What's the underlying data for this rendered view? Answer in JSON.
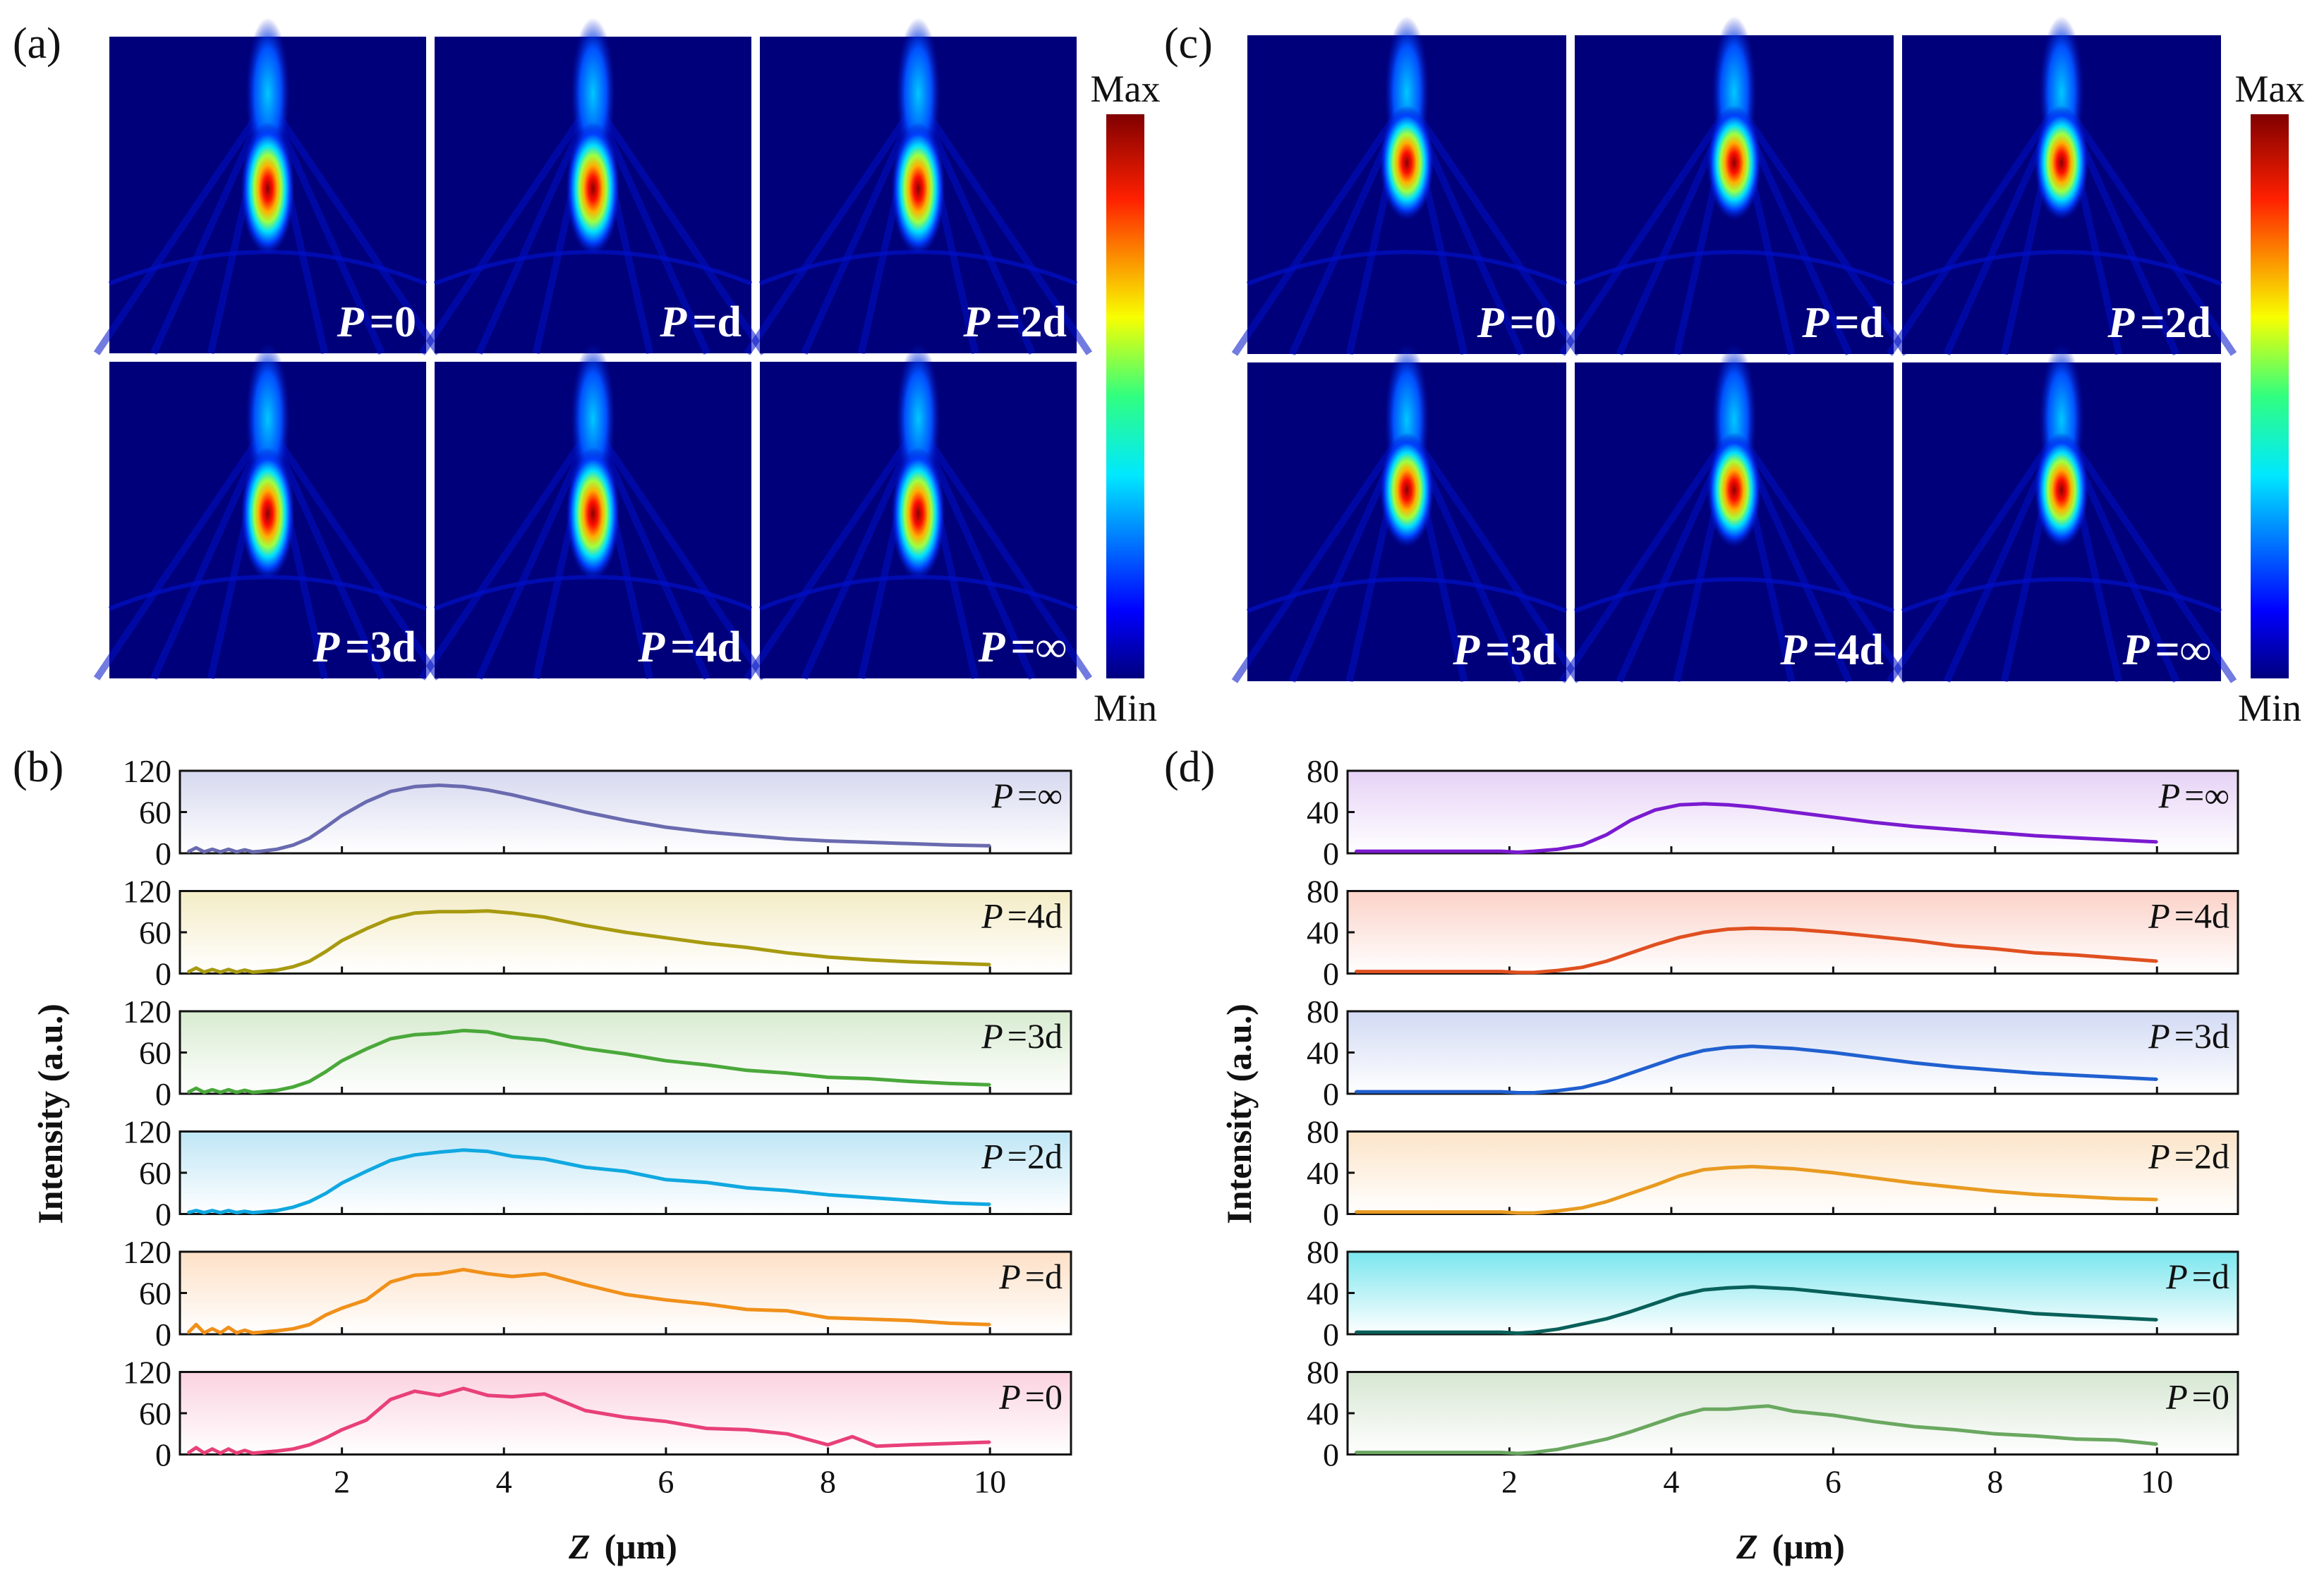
{
  "colors": {
    "bg": "#ffffff",
    "map_dark": "#00007a",
    "map_mid": "#0010c8",
    "map_cyan": "#00e8ff",
    "map_yellow": "#fff000",
    "map_red": "#e00000",
    "map_max": "#7a0000"
  },
  "colorbar": {
    "max_label": "Max",
    "min_label": "Min"
  },
  "panel_labels": {
    "a": "(a)",
    "b": "(b)",
    "c": "(c)",
    "d": "(d)"
  },
  "heatmaps": {
    "a": [
      {
        "p": "P",
        "val": "=0",
        "hotspot": "focus"
      },
      {
        "p": "P",
        "val": "=d",
        "hotspot": "focus"
      },
      {
        "p": "P",
        "val": "=2d",
        "hotspot": "focus"
      },
      {
        "p": "P",
        "val": "=3d",
        "hotspot": "focus"
      },
      {
        "p": "P",
        "val": "=4d",
        "hotspot": "focus"
      },
      {
        "p": "P",
        "val": "=∞",
        "hotspot": "focus"
      }
    ],
    "c": [
      {
        "p": "P",
        "val": "=0",
        "hotspot": "focus"
      },
      {
        "p": "P",
        "val": "=d",
        "hotspot": "focus"
      },
      {
        "p": "P",
        "val": "=2d",
        "hotspot": "focus"
      },
      {
        "p": "P",
        "val": "=3d",
        "hotspot": "focus"
      },
      {
        "p": "P",
        "val": "=4d",
        "hotspot": "focus"
      },
      {
        "p": "P",
        "val": "=∞",
        "hotspot": "focus"
      }
    ]
  },
  "chart_data": [
    {
      "type": "line",
      "panel": "(b)",
      "xlabel_var": "Z",
      "xlabel_unit": "(μm)",
      "ylabel": "Intensity (a.u.)",
      "xlim": [
        0,
        11
      ],
      "ylim": [
        0,
        120
      ],
      "xticks": [
        2,
        4,
        6,
        8,
        10
      ],
      "yticks": [
        0,
        60,
        120
      ],
      "series": [
        {
          "name": "P=∞",
          "label_p": "P",
          "label_val": "=∞",
          "color": "#6a6ab0",
          "bg": "#d6d8ef",
          "x": [
            0.1,
            0.2,
            0.3,
            0.4,
            0.5,
            0.6,
            0.7,
            0.8,
            0.9,
            1.0,
            1.2,
            1.4,
            1.6,
            1.8,
            2.0,
            2.3,
            2.6,
            2.9,
            3.2,
            3.5,
            3.8,
            4.1,
            4.5,
            5.0,
            5.5,
            6.0,
            6.5,
            7.0,
            7.5,
            8.0,
            8.5,
            9.0,
            9.5,
            10.0
          ],
          "y": [
            2,
            8,
            2,
            6,
            2,
            6,
            2,
            5,
            2,
            3,
            6,
            12,
            22,
            38,
            55,
            75,
            90,
            97,
            99,
            97,
            92,
            85,
            74,
            60,
            48,
            38,
            31,
            26,
            21,
            18,
            16,
            14,
            12,
            11
          ]
        },
        {
          "name": "P=4d",
          "label_p": "P",
          "label_val": "=4d",
          "color": "#a89a10",
          "bg": "#f4ecc6",
          "x": [
            0.1,
            0.2,
            0.3,
            0.4,
            0.5,
            0.6,
            0.7,
            0.8,
            0.9,
            1.0,
            1.2,
            1.4,
            1.6,
            1.8,
            2.0,
            2.3,
            2.6,
            2.9,
            3.2,
            3.5,
            3.8,
            4.1,
            4.5,
            5.0,
            5.5,
            6.0,
            6.5,
            7.0,
            7.5,
            8.0,
            8.5,
            9.0,
            9.5,
            10.0
          ],
          "y": [
            2,
            8,
            2,
            6,
            2,
            6,
            2,
            5,
            2,
            3,
            5,
            10,
            18,
            32,
            48,
            65,
            80,
            88,
            90,
            90,
            91,
            88,
            82,
            70,
            60,
            52,
            44,
            38,
            30,
            24,
            20,
            17,
            15,
            13
          ]
        },
        {
          "name": "P=3d",
          "label_p": "P",
          "label_val": "=3d",
          "color": "#4aa83a",
          "bg": "#d8ebd0",
          "x": [
            0.1,
            0.2,
            0.3,
            0.4,
            0.5,
            0.6,
            0.7,
            0.8,
            0.9,
            1.0,
            1.2,
            1.4,
            1.6,
            1.8,
            2.0,
            2.3,
            2.6,
            2.9,
            3.2,
            3.5,
            3.8,
            4.1,
            4.5,
            5.0,
            5.5,
            6.0,
            6.5,
            7.0,
            7.5,
            8.0,
            8.5,
            9.0,
            9.5,
            10.0
          ],
          "y": [
            2,
            8,
            2,
            6,
            2,
            6,
            2,
            5,
            2,
            3,
            5,
            10,
            18,
            32,
            48,
            65,
            80,
            86,
            88,
            92,
            90,
            82,
            78,
            66,
            58,
            48,
            42,
            34,
            30,
            24,
            22,
            18,
            15,
            13
          ]
        },
        {
          "name": "P=2d",
          "label_p": "P",
          "label_val": "=2d",
          "color": "#10a8e0",
          "bg": "#bfe6f6",
          "x": [
            0.1,
            0.2,
            0.3,
            0.4,
            0.5,
            0.6,
            0.7,
            0.8,
            0.9,
            1.0,
            1.2,
            1.4,
            1.6,
            1.8,
            2.0,
            2.3,
            2.6,
            2.9,
            3.2,
            3.5,
            3.8,
            4.1,
            4.5,
            5.0,
            5.5,
            6.0,
            6.5,
            7.0,
            7.5,
            8.0,
            8.5,
            9.0,
            9.5,
            10.0
          ],
          "y": [
            2,
            5,
            2,
            5,
            2,
            5,
            2,
            4,
            2,
            3,
            5,
            10,
            18,
            30,
            45,
            62,
            78,
            86,
            90,
            93,
            91,
            84,
            80,
            68,
            62,
            50,
            46,
            38,
            34,
            28,
            24,
            20,
            16,
            14
          ]
        },
        {
          "name": "P=d",
          "label_p": "P",
          "label_val": "=d",
          "color": "#f0901a",
          "bg": "#fde0c6",
          "x": [
            0.1,
            0.2,
            0.3,
            0.4,
            0.5,
            0.6,
            0.7,
            0.8,
            0.9,
            1.0,
            1.2,
            1.4,
            1.6,
            1.8,
            2.0,
            2.3,
            2.6,
            2.9,
            3.2,
            3.5,
            3.8,
            4.1,
            4.5,
            5.0,
            5.5,
            6.0,
            6.5,
            7.0,
            7.5,
            8.0,
            8.5,
            9.0,
            9.5,
            10.0
          ],
          "y": [
            2,
            14,
            2,
            8,
            2,
            10,
            2,
            6,
            2,
            3,
            5,
            8,
            14,
            28,
            38,
            50,
            76,
            86,
            88,
            94,
            88,
            84,
            88,
            72,
            58,
            50,
            44,
            36,
            34,
            24,
            22,
            20,
            16,
            14
          ]
        },
        {
          "name": "P=0",
          "label_p": "P",
          "label_val": "=0",
          "color": "#e8407a",
          "bg": "#fbd2e0",
          "x": [
            0.1,
            0.2,
            0.3,
            0.4,
            0.5,
            0.6,
            0.7,
            0.8,
            0.9,
            1.0,
            1.2,
            1.4,
            1.6,
            1.8,
            2.0,
            2.3,
            2.6,
            2.9,
            3.2,
            3.5,
            3.8,
            4.1,
            4.5,
            5.0,
            5.5,
            6.0,
            6.5,
            7.0,
            7.5,
            8.0,
            8.3,
            8.6,
            9.0,
            9.5,
            10.0
          ],
          "y": [
            2,
            10,
            2,
            8,
            2,
            8,
            2,
            6,
            2,
            3,
            5,
            8,
            14,
            24,
            36,
            50,
            80,
            92,
            86,
            96,
            86,
            84,
            88,
            64,
            54,
            48,
            38,
            36,
            30,
            14,
            26,
            12,
            14,
            16,
            18
          ]
        }
      ]
    },
    {
      "type": "line",
      "panel": "(d)",
      "xlabel_var": "Z",
      "xlabel_unit": "(μm)",
      "ylabel": "Intensity (a.u.)",
      "xlim": [
        0,
        11
      ],
      "ylim": [
        0,
        80
      ],
      "xticks": [
        2,
        4,
        6,
        8,
        10
      ],
      "yticks": [
        0,
        40,
        80
      ],
      "series": [
        {
          "name": "P=∞",
          "label_p": "P",
          "label_val": "=∞",
          "color": "#7a1ad0",
          "bg": "#e6d2f6",
          "x": [
            0.1,
            0.3,
            0.5,
            0.7,
            0.9,
            1.1,
            1.3,
            1.5,
            1.7,
            1.9,
            2.1,
            2.3,
            2.6,
            2.9,
            3.2,
            3.5,
            3.8,
            4.1,
            4.4,
            4.7,
            5.0,
            5.5,
            6.0,
            6.5,
            7.0,
            7.5,
            8.0,
            8.5,
            9.0,
            9.5,
            10.0
          ],
          "y": [
            2,
            2,
            2,
            2,
            2,
            2,
            2,
            2,
            2,
            2,
            1,
            2,
            4,
            8,
            18,
            32,
            42,
            47,
            48,
            47,
            45,
            40,
            35,
            30,
            26,
            23,
            20,
            17,
            15,
            13,
            11
          ]
        },
        {
          "name": "P=4d",
          "label_p": "P",
          "label_val": "=4d",
          "color": "#e05020",
          "bg": "#fbd2c8",
          "x": [
            0.1,
            0.3,
            0.5,
            0.7,
            0.9,
            1.1,
            1.3,
            1.5,
            1.7,
            1.9,
            2.1,
            2.3,
            2.6,
            2.9,
            3.2,
            3.5,
            3.8,
            4.1,
            4.4,
            4.7,
            5.0,
            5.5,
            6.0,
            6.5,
            7.0,
            7.5,
            8.0,
            8.5,
            9.0,
            9.5,
            10.0
          ],
          "y": [
            2,
            2,
            2,
            2,
            2,
            2,
            2,
            2,
            2,
            2,
            1,
            1,
            3,
            6,
            12,
            20,
            28,
            35,
            40,
            43,
            44,
            43,
            40,
            36,
            32,
            27,
            24,
            20,
            18,
            15,
            12
          ]
        },
        {
          "name": "P=3d",
          "label_p": "P",
          "label_val": "=3d",
          "color": "#2060d0",
          "bg": "#d2daf4",
          "x": [
            0.1,
            0.3,
            0.5,
            0.7,
            0.9,
            1.1,
            1.3,
            1.5,
            1.7,
            1.9,
            2.1,
            2.3,
            2.6,
            2.9,
            3.2,
            3.5,
            3.8,
            4.1,
            4.4,
            4.7,
            5.0,
            5.5,
            6.0,
            6.5,
            7.0,
            7.5,
            8.0,
            8.5,
            9.0,
            9.5,
            10.0
          ],
          "y": [
            2,
            2,
            2,
            2,
            2,
            2,
            2,
            2,
            2,
            2,
            1,
            1,
            3,
            6,
            12,
            20,
            28,
            36,
            42,
            45,
            46,
            44,
            40,
            35,
            30,
            26,
            23,
            20,
            18,
            16,
            14
          ]
        },
        {
          "name": "P=2d",
          "label_p": "P",
          "label_val": "=2d",
          "color": "#e89a20",
          "bg": "#fce4c8",
          "x": [
            0.1,
            0.3,
            0.5,
            0.7,
            0.9,
            1.1,
            1.3,
            1.5,
            1.7,
            1.9,
            2.1,
            2.3,
            2.6,
            2.9,
            3.2,
            3.5,
            3.8,
            4.1,
            4.4,
            4.7,
            5.0,
            5.5,
            6.0,
            6.5,
            7.0,
            7.5,
            8.0,
            8.5,
            9.0,
            9.5,
            10.0
          ],
          "y": [
            2,
            2,
            2,
            2,
            2,
            2,
            2,
            2,
            2,
            2,
            1,
            1,
            3,
            6,
            12,
            20,
            28,
            37,
            43,
            45,
            46,
            44,
            40,
            35,
            30,
            26,
            22,
            19,
            17,
            15,
            14
          ]
        },
        {
          "name": "P=d",
          "label_p": "P",
          "label_val": "=d",
          "color": "#08605a",
          "bg": "#7ae6ee",
          "x": [
            0.1,
            0.3,
            0.5,
            0.7,
            0.9,
            1.1,
            1.3,
            1.5,
            1.7,
            1.9,
            2.1,
            2.3,
            2.6,
            2.9,
            3.2,
            3.5,
            3.8,
            4.1,
            4.4,
            4.7,
            5.0,
            5.5,
            6.0,
            6.5,
            7.0,
            7.5,
            8.0,
            8.5,
            9.0,
            9.5,
            10.0
          ],
          "y": [
            2,
            2,
            2,
            2,
            2,
            2,
            2,
            2,
            2,
            2,
            1,
            2,
            5,
            10,
            15,
            22,
            30,
            38,
            43,
            45,
            46,
            44,
            40,
            36,
            32,
            28,
            24,
            20,
            18,
            16,
            14
          ]
        },
        {
          "name": "P=0",
          "label_p": "P",
          "label_val": "=0",
          "color": "#6aa860",
          "bg": "#d6e6d2",
          "x": [
            0.1,
            0.3,
            0.5,
            0.7,
            0.9,
            1.1,
            1.3,
            1.5,
            1.7,
            1.9,
            2.1,
            2.3,
            2.6,
            2.9,
            3.2,
            3.5,
            3.8,
            4.1,
            4.4,
            4.7,
            5.0,
            5.2,
            5.5,
            6.0,
            6.5,
            7.0,
            7.5,
            8.0,
            8.5,
            9.0,
            9.5,
            10.0
          ],
          "y": [
            2,
            2,
            2,
            2,
            2,
            2,
            2,
            2,
            2,
            2,
            1,
            2,
            5,
            10,
            15,
            22,
            30,
            38,
            44,
            44,
            46,
            47,
            42,
            38,
            32,
            27,
            24,
            20,
            18,
            15,
            14,
            10
          ]
        }
      ]
    }
  ]
}
